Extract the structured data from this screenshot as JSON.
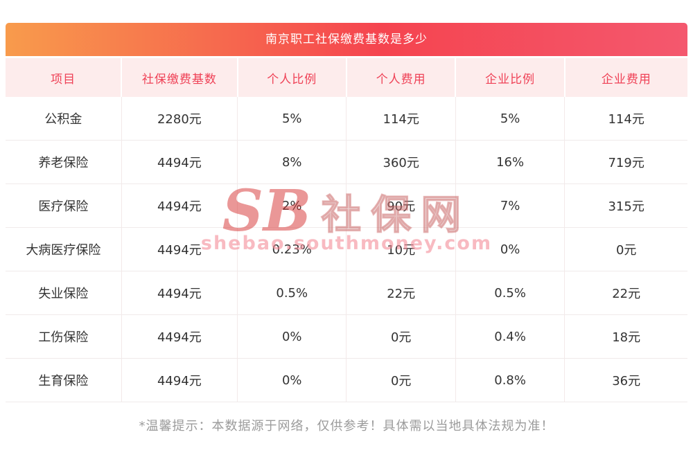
{
  "title": "南京职工社保缴费基数是多少",
  "chart_data": {
    "type": "table",
    "title": "南京职工社保缴费基数是多少",
    "columns": [
      "项目",
      "社保缴费基数",
      "个人比例",
      "个人费用",
      "企业比例",
      "企业费用"
    ],
    "rows": [
      [
        "公积金",
        "2280元",
        "5%",
        "114元",
        "5%",
        "114元"
      ],
      [
        "养老保险",
        "4494元",
        "8%",
        "360元",
        "16%",
        "719元"
      ],
      [
        "医疗保险",
        "4494元",
        "2%",
        "90元",
        "7%",
        "315元"
      ],
      [
        "大病医疗保险",
        "4494元",
        "0.23%",
        "10元",
        "0%",
        "0元"
      ],
      [
        "失业保险",
        "4494元",
        "0.5%",
        "22元",
        "0.5%",
        "22元"
      ],
      [
        "工伤保险",
        "4494元",
        "0%",
        "0元",
        "0.4%",
        "18元"
      ],
      [
        "生育保险",
        "4494元",
        "0%",
        "0元",
        "0.8%",
        "36元"
      ]
    ]
  },
  "note": "*温馨提示：本数据源于网络，仅供参考！具体需以当地具体法规为准！",
  "watermark": {
    "logo_text": "SB",
    "site_name": "社保网",
    "site_url": "shebao.southmoney.com"
  },
  "colors": {
    "title_gradient_start": "#f89b4c",
    "title_gradient_end": "#f4586e",
    "header_row_bg": "#fdecec",
    "header_text": "#ef4156",
    "body_text": "#333333",
    "note_text": "#9b9b9b",
    "border": "#f0eaea"
  }
}
